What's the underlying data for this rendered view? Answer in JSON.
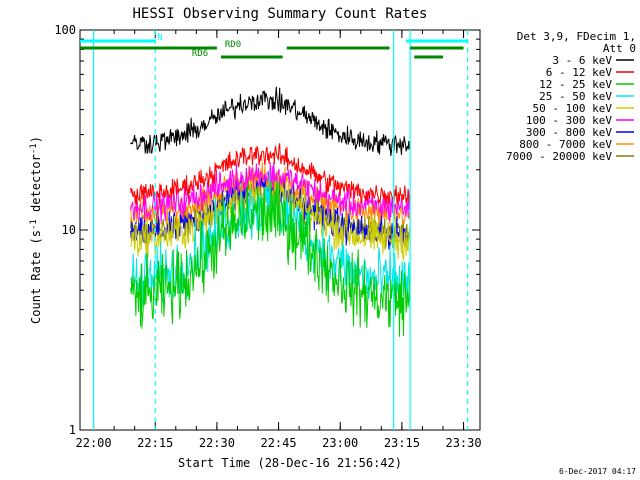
{
  "chart_data": {
    "type": "line",
    "title": "HESSI Observing Summary Count Rates",
    "xlabel": "Start Time (28-Dec-16 21:56:42)",
    "ylabel_main": "Count Rate (s",
    "ylabel_exp1": "-1",
    "ylabel_mid": " detector",
    "ylabel_exp2": "-1",
    "ylabel_end": ")",
    "y_scale": "log",
    "xlim": [
      "21:56:42",
      "23:34:00"
    ],
    "ylim": [
      1,
      100
    ],
    "x_ticks": [
      "22:00",
      "22:15",
      "22:30",
      "22:45",
      "23:00",
      "23:15",
      "23:30"
    ],
    "y_ticks": [
      "1",
      "10",
      "100"
    ],
    "legend_header": [
      "Det 3,9, FDecim 1,",
      "Att 0"
    ],
    "legend_position": "top-right, outside plot",
    "series": [
      {
        "name": "3 - 6 keV",
        "color": "#000000",
        "baseline": 27,
        "peak": 45,
        "noise": 0.06
      },
      {
        "name": "6 - 12 keV",
        "color": "#ff0000",
        "baseline": 15,
        "peak": 24,
        "noise": 0.06
      },
      {
        "name": "12 - 25 keV",
        "color": "#00cc00",
        "baseline": 4.5,
        "peak": 12,
        "noise": 0.18
      },
      {
        "name": "25 - 50 keV",
        "color": "#00e5e5",
        "baseline": 5.5,
        "peak": 13,
        "noise": 0.16
      },
      {
        "name": "50 - 100 keV",
        "color": "#cccc00",
        "baseline": 9,
        "peak": 15,
        "noise": 0.1
      },
      {
        "name": "100 - 300 keV",
        "color": "#ff00ff",
        "baseline": 13,
        "peak": 19,
        "noise": 0.08
      },
      {
        "name": "300 - 800 keV",
        "color": "#0000ff",
        "baseline": 9.5,
        "peak": 16,
        "noise": 0.08
      },
      {
        "name": "800 - 7000 keV",
        "color": "#ff8c00",
        "baseline": 12,
        "peak": 18,
        "noise": 0.08
      },
      {
        "name": "7000 - 20000 keV",
        "color": "#808000",
        "baseline": 10,
        "peak": 16,
        "noise": 0.08
      }
    ],
    "data_range": [
      "22:09:00",
      "23:17:00"
    ],
    "peak_time": "22:41:00",
    "flags": [
      {
        "label": "N",
        "color": "#00ffff",
        "segments": [
          [
            "21:56:42",
            "22:15:00"
          ],
          [
            "23:16:00",
            "23:31:00"
          ]
        ]
      },
      {
        "label": "RD0",
        "color": "#008800",
        "segments": [
          [
            "21:56:42",
            "22:30:00"
          ],
          [
            "22:47:00",
            "23:12:00"
          ],
          [
            "23:17:00",
            "23:30:00"
          ]
        ]
      },
      {
        "label": "RD6",
        "color": "#008800",
        "segments": [
          [
            "22:31:00",
            "22:46:00"
          ],
          [
            "23:18:00",
            "23:25:00"
          ]
        ]
      }
    ],
    "vlines": [
      {
        "time": "22:00:00",
        "color": "#00ffff",
        "style": "solid"
      },
      {
        "time": "22:15:00",
        "color": "#00ffff",
        "style": "dashed"
      },
      {
        "time": "23:13:00",
        "color": "#00ffff",
        "style": "solid"
      },
      {
        "time": "23:17:00",
        "color": "#00ffff",
        "style": "solid"
      },
      {
        "time": "23:31:00",
        "color": "#00ffff",
        "style": "dashed"
      }
    ]
  },
  "footer_timestamp": "6-Dec-2017 04:17"
}
